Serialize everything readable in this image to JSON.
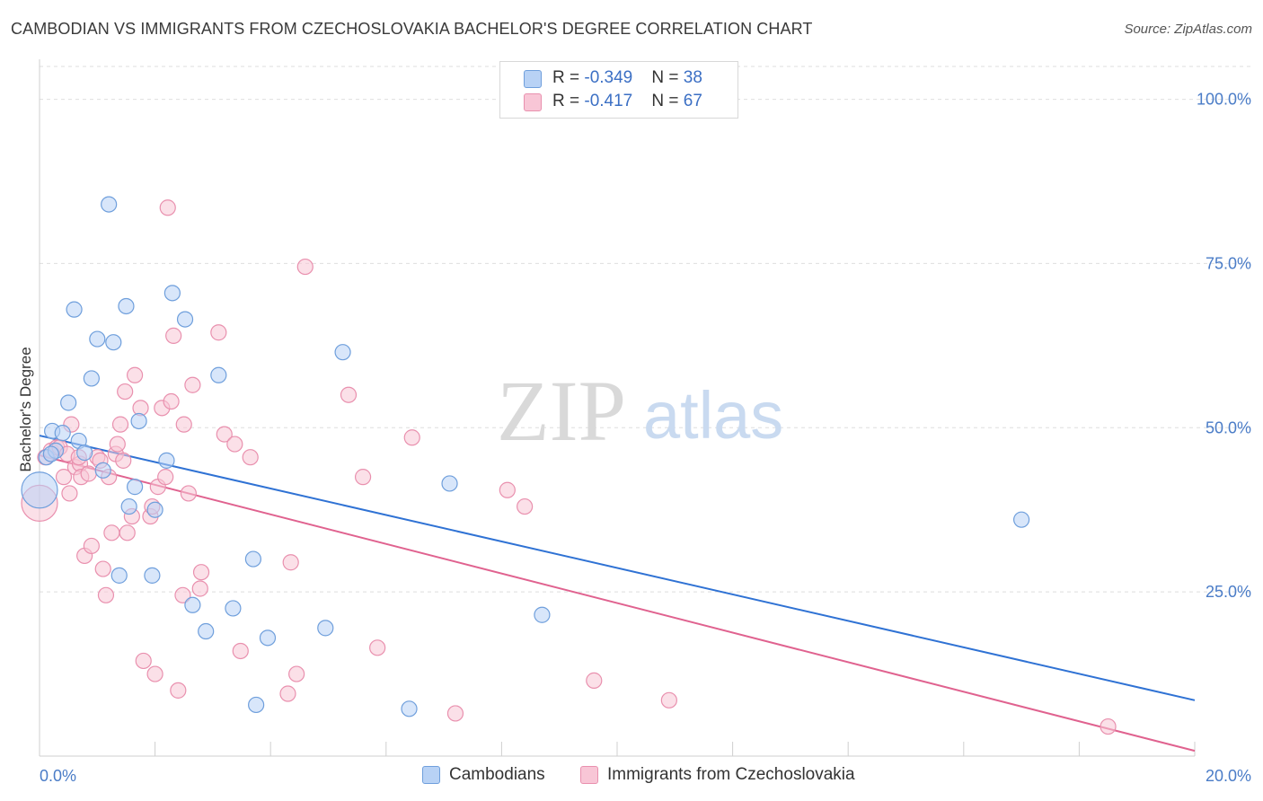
{
  "header": {
    "title": "CAMBODIAN VS IMMIGRANTS FROM CZECHOSLOVAKIA BACHELOR'S DEGREE CORRELATION CHART",
    "source": "Source: ZipAtlas.com"
  },
  "watermark": {
    "zip": "ZIP",
    "atlas": "atlas"
  },
  "legend": {
    "rows": [
      {
        "r_label": "R = ",
        "r_value": "-0.349",
        "n_label": "N = ",
        "n_value": "38"
      },
      {
        "r_label": "R = ",
        "r_value": "-0.417",
        "n_label": "N = ",
        "n_value": "67"
      }
    ]
  },
  "bottom_legend": {
    "items": [
      "Cambodians",
      "Immigrants from Czechoslovakia"
    ]
  },
  "colors": {
    "blue_fill": "#b8d2f5",
    "blue_stroke": "#6f9fdc",
    "blue_line": "#2f72d4",
    "pink_fill": "#f8c6d6",
    "pink_stroke": "#e990ae",
    "pink_line": "#e0628f",
    "grid": "#dedede",
    "axis_text": "#4a7cc7"
  },
  "chart_data": {
    "type": "scatter",
    "title": "CAMBODIAN VS IMMIGRANTS FROM CZECHOSLOVAKIA BACHELOR'S DEGREE CORRELATION CHART",
    "xlabel": "",
    "ylabel": "Bachelor's Degree",
    "xlim": [
      0,
      20
    ],
    "ylim": [
      0,
      105
    ],
    "x_tick_labels": [
      "0.0%",
      "20.0%"
    ],
    "y_ticks": [
      25,
      50,
      75,
      100
    ],
    "y_tick_labels": [
      "25.0%",
      "50.0%",
      "75.0%",
      "100.0%"
    ],
    "grid": true,
    "legend_position": "top-center",
    "series": [
      {
        "name": "Cambodians",
        "r": -0.349,
        "n": 38,
        "trend": {
          "x": [
            0,
            20
          ],
          "y": [
            48.8,
            8.5
          ]
        },
        "points": [
          {
            "x": 0.0,
            "y": 40.5,
            "s": 2
          },
          {
            "x": 0.12,
            "y": 45.5,
            "s": 1
          },
          {
            "x": 0.22,
            "y": 49.5,
            "s": 1
          },
          {
            "x": 0.28,
            "y": 46.5,
            "s": 1
          },
          {
            "x": 0.4,
            "y": 49.2,
            "s": 1
          },
          {
            "x": 0.5,
            "y": 53.8,
            "s": 1
          },
          {
            "x": 0.6,
            "y": 68.0,
            "s": 1
          },
          {
            "x": 0.68,
            "y": 48.0,
            "s": 1
          },
          {
            "x": 0.78,
            "y": 46.2,
            "s": 1
          },
          {
            "x": 0.9,
            "y": 57.5,
            "s": 1
          },
          {
            "x": 1.0,
            "y": 63.5,
            "s": 1
          },
          {
            "x": 1.1,
            "y": 43.5,
            "s": 1
          },
          {
            "x": 1.2,
            "y": 84.0,
            "s": 1
          },
          {
            "x": 1.28,
            "y": 63.0,
            "s": 1
          },
          {
            "x": 1.38,
            "y": 27.5,
            "s": 1
          },
          {
            "x": 1.5,
            "y": 68.5,
            "s": 1
          },
          {
            "x": 1.55,
            "y": 38.0,
            "s": 1
          },
          {
            "x": 1.65,
            "y": 41.0,
            "s": 1
          },
          {
            "x": 1.72,
            "y": 51.0,
            "s": 1
          },
          {
            "x": 1.95,
            "y": 27.5,
            "s": 1
          },
          {
            "x": 2.0,
            "y": 37.5,
            "s": 1
          },
          {
            "x": 2.2,
            "y": 45.0,
            "s": 1
          },
          {
            "x": 2.3,
            "y": 70.5,
            "s": 1
          },
          {
            "x": 2.52,
            "y": 66.5,
            "s": 1
          },
          {
            "x": 2.65,
            "y": 23.0,
            "s": 1
          },
          {
            "x": 2.88,
            "y": 19.0,
            "s": 1
          },
          {
            "x": 3.1,
            "y": 58.0,
            "s": 1
          },
          {
            "x": 3.35,
            "y": 22.5,
            "s": 1
          },
          {
            "x": 3.7,
            "y": 30.0,
            "s": 1
          },
          {
            "x": 3.75,
            "y": 7.8,
            "s": 1
          },
          {
            "x": 3.95,
            "y": 18.0,
            "s": 1
          },
          {
            "x": 4.95,
            "y": 19.5,
            "s": 1
          },
          {
            "x": 5.25,
            "y": 61.5,
            "s": 1
          },
          {
            "x": 6.4,
            "y": 7.2,
            "s": 1
          },
          {
            "x": 7.1,
            "y": 41.5,
            "s": 1
          },
          {
            "x": 8.7,
            "y": 21.5,
            "s": 1
          },
          {
            "x": 17.0,
            "y": 36.0,
            "s": 1
          },
          {
            "x": 0.2,
            "y": 46.0,
            "s": 1
          }
        ]
      },
      {
        "name": "Immigrants from Czechoslovakia",
        "r": -0.417,
        "n": 67,
        "trend": {
          "x": [
            0,
            20
          ],
          "y": [
            45.8,
            0.8
          ]
        },
        "points": [
          {
            "x": 0.0,
            "y": 38.5,
            "s": 2
          },
          {
            "x": 0.1,
            "y": 45.5,
            "s": 1
          },
          {
            "x": 0.2,
            "y": 46.5,
            "s": 1
          },
          {
            "x": 0.3,
            "y": 47.0,
            "s": 1
          },
          {
            "x": 0.35,
            "y": 47.0,
            "s": 1
          },
          {
            "x": 0.42,
            "y": 42.5,
            "s": 1
          },
          {
            "x": 0.48,
            "y": 46.0,
            "s": 1
          },
          {
            "x": 0.52,
            "y": 40.0,
            "s": 1
          },
          {
            "x": 0.55,
            "y": 50.5,
            "s": 1
          },
          {
            "x": 0.62,
            "y": 44.0,
            "s": 1
          },
          {
            "x": 0.7,
            "y": 44.5,
            "s": 1
          },
          {
            "x": 0.72,
            "y": 42.5,
            "s": 1
          },
          {
            "x": 0.78,
            "y": 30.5,
            "s": 1
          },
          {
            "x": 0.85,
            "y": 43.0,
            "s": 1
          },
          {
            "x": 0.9,
            "y": 32.0,
            "s": 1
          },
          {
            "x": 1.0,
            "y": 45.5,
            "s": 1
          },
          {
            "x": 1.05,
            "y": 45.0,
            "s": 1
          },
          {
            "x": 1.1,
            "y": 28.5,
            "s": 1
          },
          {
            "x": 1.15,
            "y": 24.5,
            "s": 1
          },
          {
            "x": 1.2,
            "y": 42.5,
            "s": 1
          },
          {
            "x": 1.25,
            "y": 34.0,
            "s": 1
          },
          {
            "x": 1.32,
            "y": 46.0,
            "s": 1
          },
          {
            "x": 1.35,
            "y": 47.5,
            "s": 1
          },
          {
            "x": 1.4,
            "y": 50.5,
            "s": 1
          },
          {
            "x": 1.48,
            "y": 55.5,
            "s": 1
          },
          {
            "x": 1.52,
            "y": 34.0,
            "s": 1
          },
          {
            "x": 1.6,
            "y": 36.5,
            "s": 1
          },
          {
            "x": 1.65,
            "y": 58.0,
            "s": 1
          },
          {
            "x": 1.75,
            "y": 53.0,
            "s": 1
          },
          {
            "x": 1.8,
            "y": 14.5,
            "s": 1
          },
          {
            "x": 1.92,
            "y": 36.5,
            "s": 1
          },
          {
            "x": 1.95,
            "y": 38.0,
            "s": 1
          },
          {
            "x": 2.0,
            "y": 12.5,
            "s": 1
          },
          {
            "x": 2.05,
            "y": 41.0,
            "s": 1
          },
          {
            "x": 2.12,
            "y": 53.0,
            "s": 1
          },
          {
            "x": 2.18,
            "y": 42.5,
            "s": 1
          },
          {
            "x": 2.22,
            "y": 83.5,
            "s": 1
          },
          {
            "x": 2.28,
            "y": 54.0,
            "s": 1
          },
          {
            "x": 2.32,
            "y": 64.0,
            "s": 1
          },
          {
            "x": 2.4,
            "y": 10.0,
            "s": 1
          },
          {
            "x": 2.48,
            "y": 24.5,
            "s": 1
          },
          {
            "x": 2.5,
            "y": 50.5,
            "s": 1
          },
          {
            "x": 2.58,
            "y": 40.0,
            "s": 1
          },
          {
            "x": 2.65,
            "y": 56.5,
            "s": 1
          },
          {
            "x": 2.8,
            "y": 28.0,
            "s": 1
          },
          {
            "x": 2.78,
            "y": 25.5,
            "s": 1
          },
          {
            "x": 3.1,
            "y": 64.5,
            "s": 1
          },
          {
            "x": 3.2,
            "y": 49.0,
            "s": 1
          },
          {
            "x": 3.38,
            "y": 47.5,
            "s": 1
          },
          {
            "x": 3.48,
            "y": 16.0,
            "s": 1
          },
          {
            "x": 3.65,
            "y": 45.5,
            "s": 1
          },
          {
            "x": 4.3,
            "y": 9.5,
            "s": 1
          },
          {
            "x": 4.35,
            "y": 29.5,
            "s": 1
          },
          {
            "x": 4.45,
            "y": 12.5,
            "s": 1
          },
          {
            "x": 4.6,
            "y": 74.5,
            "s": 1
          },
          {
            "x": 5.35,
            "y": 55.0,
            "s": 1
          },
          {
            "x": 5.6,
            "y": 42.5,
            "s": 1
          },
          {
            "x": 5.85,
            "y": 16.5,
            "s": 1
          },
          {
            "x": 6.45,
            "y": 48.5,
            "s": 1
          },
          {
            "x": 7.2,
            "y": 6.5,
            "s": 1
          },
          {
            "x": 8.1,
            "y": 40.5,
            "s": 1
          },
          {
            "x": 8.4,
            "y": 38.0,
            "s": 1
          },
          {
            "x": 9.6,
            "y": 11.5,
            "s": 1
          },
          {
            "x": 10.9,
            "y": 8.5,
            "s": 1
          },
          {
            "x": 18.5,
            "y": 4.5,
            "s": 1
          },
          {
            "x": 0.68,
            "y": 45.5,
            "s": 1
          },
          {
            "x": 1.45,
            "y": 45.0,
            "s": 1
          }
        ]
      }
    ]
  }
}
